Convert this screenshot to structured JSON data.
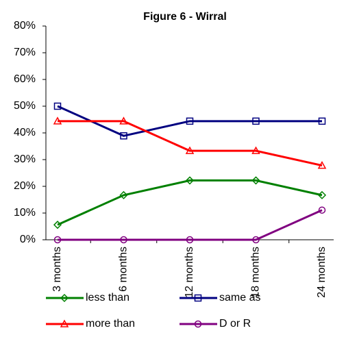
{
  "chart_data": {
    "type": "line",
    "title": "Figure 6 - Wirral",
    "categories": [
      "3 months",
      "6 months",
      "12 months",
      "18 months",
      "24 months"
    ],
    "series": [
      {
        "name": "less than",
        "color": "#008000",
        "marker": "diamond",
        "values": [
          5.6,
          16.7,
          22.2,
          22.2,
          16.7
        ]
      },
      {
        "name": "same as",
        "color": "#000080",
        "marker": "square",
        "values": [
          50,
          38.9,
          44.4,
          44.4,
          44.4
        ]
      },
      {
        "name": "more than",
        "color": "#ff0000",
        "marker": "triangle",
        "values": [
          44.4,
          44.4,
          33.3,
          33.3,
          27.8
        ]
      },
      {
        "name": "D or R",
        "color": "#800080",
        "marker": "circle",
        "values": [
          0,
          0,
          0,
          0,
          11.1
        ]
      }
    ],
    "ylim": [
      0,
      80
    ],
    "yticks": [
      {
        "value": 0,
        "label": "0%"
      },
      {
        "value": 10,
        "label": "10%"
      },
      {
        "value": 20,
        "label": "20%"
      },
      {
        "value": 30,
        "label": "30%"
      },
      {
        "value": 40,
        "label": "40%"
      },
      {
        "value": 50,
        "label": "50%"
      },
      {
        "value": 60,
        "label": "60%"
      },
      {
        "value": 70,
        "label": "70%"
      },
      {
        "value": 80,
        "label": "80%"
      }
    ],
    "grid": false
  }
}
